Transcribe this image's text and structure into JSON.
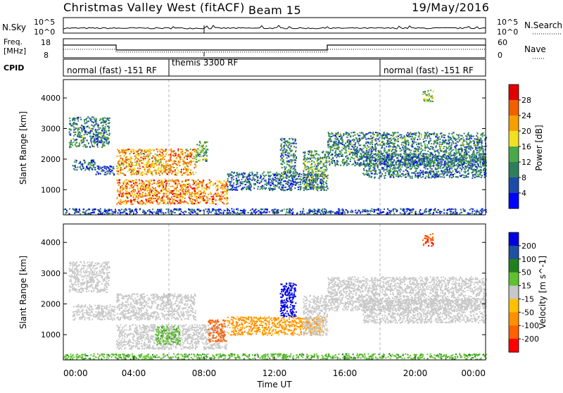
{
  "header": {
    "station": "Christmas Valley West (fitACF)",
    "beam": "Beam 15",
    "date": "19/May/2016"
  },
  "nsky_panel": {
    "left_label": "N.Sky",
    "right_label": "N.Search",
    "left_ticks": [
      "10^5",
      "10^0"
    ],
    "right_ticks": [
      "10^5",
      "10^0"
    ]
  },
  "freq_panel": {
    "left_label_1": "Freq.",
    "left_label_2": "[MHz]",
    "right_label": "Nave",
    "left_ticks": [
      "18",
      "8"
    ],
    "right_ticks": [
      "60",
      "0"
    ]
  },
  "cpid_panel": {
    "label": "CPID",
    "segments": [
      {
        "label": "normal (fast) -151 RF",
        "start_hour": 0
      },
      {
        "label": "themis 3300 RF",
        "start_hour": 6
      },
      {
        "label": "normal (fast) -151 RF",
        "start_hour": 18
      }
    ]
  },
  "colors": {
    "power_scale": [
      "#0000ff",
      "#1c4aa8",
      "#2e7d5b",
      "#4aa84a",
      "#f0e020",
      "#f5a000",
      "#f06000",
      "#e00000"
    ],
    "velocity_scale": [
      "#ff0000",
      "#ff6000",
      "#ff9000",
      "#ffc000",
      "#c8c8c8",
      "#60c030",
      "#208020",
      "#2050a0",
      "#0000e0"
    ],
    "ground_scatter": "#c8c8c8"
  },
  "chart_data": [
    {
      "type": "heatmap",
      "name": "power-panel",
      "ylabel": "Slant Range [km]",
      "colorbar_label": "Power [dB]",
      "colorbar_ticks": [
        "28",
        "24",
        "20",
        "16",
        "12",
        "8",
        "4"
      ],
      "y_ticks": [
        "4000",
        "3000",
        "2000",
        "1000"
      ],
      "ylim": [
        180,
        4600
      ],
      "xlim": [
        0,
        24
      ],
      "regions": [
        {
          "x": [
            0.3,
            2.6
          ],
          "y": [
            2400,
            3400
          ],
          "p": 10
        },
        {
          "x": [
            0.5,
            1.8
          ],
          "y": [
            1650,
            2000
          ],
          "p": 8
        },
        {
          "x": [
            1.8,
            2.9
          ],
          "y": [
            1500,
            1800
          ],
          "p": 6
        },
        {
          "x": [
            3.0,
            7.5
          ],
          "y": [
            1500,
            2350
          ],
          "p": 22
        },
        {
          "x": [
            3.0,
            9.3
          ],
          "y": [
            550,
            1350
          ],
          "p": 24
        },
        {
          "x": [
            7.5,
            8.2
          ],
          "y": [
            1900,
            2600
          ],
          "p": 14
        },
        {
          "x": [
            9.3,
            14.8
          ],
          "y": [
            1000,
            1600
          ],
          "p": 8
        },
        {
          "x": [
            12.3,
            13.2
          ],
          "y": [
            1400,
            2700
          ],
          "p": 10
        },
        {
          "x": [
            13.6,
            15.0
          ],
          "y": [
            1000,
            2300
          ],
          "p": 12
        },
        {
          "x": [
            15.0,
            24.0
          ],
          "y": [
            1800,
            2900
          ],
          "p": 10
        },
        {
          "x": [
            17.0,
            24.0
          ],
          "y": [
            1400,
            2200
          ],
          "p": 9
        },
        {
          "x": [
            20.4,
            21.0
          ],
          "y": [
            3900,
            4300
          ],
          "p": 14
        },
        {
          "x": [
            0.0,
            24.0
          ],
          "y": [
            220,
            400
          ],
          "p": 6
        }
      ]
    },
    {
      "type": "heatmap",
      "name": "velocity-panel",
      "ylabel": "Slant Range [km]",
      "xlabel": "Time UT",
      "colorbar_label": "Velocity [m s^-1]",
      "colorbar_ticks": [
        "200",
        "100",
        "50",
        "15",
        "-15",
        "-50",
        "-100",
        "-200"
      ],
      "x_ticks": [
        "00:00",
        "04:00",
        "08:00",
        "12:00",
        "16:00",
        "20:00",
        "00:00"
      ],
      "y_ticks": [
        "4000",
        "3000",
        "2000",
        "1000"
      ],
      "ylim": [
        180,
        4600
      ],
      "xlim": [
        0,
        24
      ],
      "regions": [
        {
          "x": [
            0.3,
            2.6
          ],
          "y": [
            2400,
            3400
          ],
          "v": 0
        },
        {
          "x": [
            0.5,
            2.9
          ],
          "y": [
            1500,
            2000
          ],
          "v": 0
        },
        {
          "x": [
            3.0,
            7.5
          ],
          "y": [
            1500,
            2350
          ],
          "v": 0
        },
        {
          "x": [
            3.0,
            9.3
          ],
          "y": [
            550,
            1350
          ],
          "v": 0
        },
        {
          "x": [
            5.2,
            6.6
          ],
          "y": [
            700,
            1300
          ],
          "v": 40
        },
        {
          "x": [
            8.2,
            9.2
          ],
          "y": [
            800,
            1500
          ],
          "v": -120
        },
        {
          "x": [
            9.3,
            14.8
          ],
          "y": [
            1000,
            1600
          ],
          "v": -60
        },
        {
          "x": [
            12.3,
            13.2
          ],
          "y": [
            1600,
            2700
          ],
          "v": 220
        },
        {
          "x": [
            13.6,
            15.0
          ],
          "y": [
            1000,
            2300
          ],
          "v": 0
        },
        {
          "x": [
            15.0,
            24.0
          ],
          "y": [
            1800,
            2900
          ],
          "v": 0
        },
        {
          "x": [
            17.0,
            24.0
          ],
          "y": [
            1400,
            2200
          ],
          "v": 0
        },
        {
          "x": [
            20.4,
            21.0
          ],
          "y": [
            3900,
            4300
          ],
          "v": -200
        },
        {
          "x": [
            0.0,
            24.0
          ],
          "y": [
            220,
            400
          ],
          "v": 40
        }
      ]
    }
  ]
}
